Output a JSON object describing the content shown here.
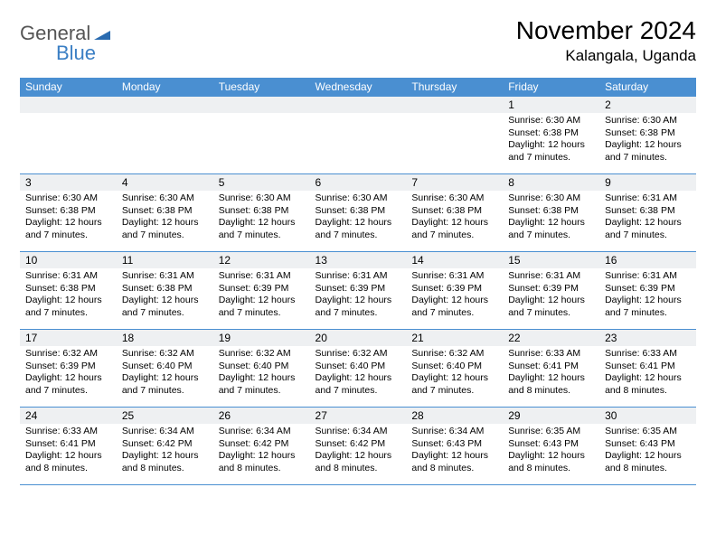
{
  "logo": {
    "word1": "General",
    "word2": "Blue",
    "tri_color": "#2a6bb0"
  },
  "title": "November 2024",
  "location": "Kalangala, Uganda",
  "colors": {
    "header_bg": "#4a8fd1",
    "header_text": "#ffffff",
    "rule": "#4a8fd1",
    "daynum_bg": "#eef0f2",
    "page_bg": "#ffffff",
    "text": "#000000"
  },
  "day_labels": [
    "Sunday",
    "Monday",
    "Tuesday",
    "Wednesday",
    "Thursday",
    "Friday",
    "Saturday"
  ],
  "weeks": [
    [
      {
        "n": "",
        "sr": "",
        "ss": "",
        "dl": ""
      },
      {
        "n": "",
        "sr": "",
        "ss": "",
        "dl": ""
      },
      {
        "n": "",
        "sr": "",
        "ss": "",
        "dl": ""
      },
      {
        "n": "",
        "sr": "",
        "ss": "",
        "dl": ""
      },
      {
        "n": "",
        "sr": "",
        "ss": "",
        "dl": ""
      },
      {
        "n": "1",
        "sr": "Sunrise: 6:30 AM",
        "ss": "Sunset: 6:38 PM",
        "dl": "Daylight: 12 hours and 7 minutes."
      },
      {
        "n": "2",
        "sr": "Sunrise: 6:30 AM",
        "ss": "Sunset: 6:38 PM",
        "dl": "Daylight: 12 hours and 7 minutes."
      }
    ],
    [
      {
        "n": "3",
        "sr": "Sunrise: 6:30 AM",
        "ss": "Sunset: 6:38 PM",
        "dl": "Daylight: 12 hours and 7 minutes."
      },
      {
        "n": "4",
        "sr": "Sunrise: 6:30 AM",
        "ss": "Sunset: 6:38 PM",
        "dl": "Daylight: 12 hours and 7 minutes."
      },
      {
        "n": "5",
        "sr": "Sunrise: 6:30 AM",
        "ss": "Sunset: 6:38 PM",
        "dl": "Daylight: 12 hours and 7 minutes."
      },
      {
        "n": "6",
        "sr": "Sunrise: 6:30 AM",
        "ss": "Sunset: 6:38 PM",
        "dl": "Daylight: 12 hours and 7 minutes."
      },
      {
        "n": "7",
        "sr": "Sunrise: 6:30 AM",
        "ss": "Sunset: 6:38 PM",
        "dl": "Daylight: 12 hours and 7 minutes."
      },
      {
        "n": "8",
        "sr": "Sunrise: 6:30 AM",
        "ss": "Sunset: 6:38 PM",
        "dl": "Daylight: 12 hours and 7 minutes."
      },
      {
        "n": "9",
        "sr": "Sunrise: 6:31 AM",
        "ss": "Sunset: 6:38 PM",
        "dl": "Daylight: 12 hours and 7 minutes."
      }
    ],
    [
      {
        "n": "10",
        "sr": "Sunrise: 6:31 AM",
        "ss": "Sunset: 6:38 PM",
        "dl": "Daylight: 12 hours and 7 minutes."
      },
      {
        "n": "11",
        "sr": "Sunrise: 6:31 AM",
        "ss": "Sunset: 6:38 PM",
        "dl": "Daylight: 12 hours and 7 minutes."
      },
      {
        "n": "12",
        "sr": "Sunrise: 6:31 AM",
        "ss": "Sunset: 6:39 PM",
        "dl": "Daylight: 12 hours and 7 minutes."
      },
      {
        "n": "13",
        "sr": "Sunrise: 6:31 AM",
        "ss": "Sunset: 6:39 PM",
        "dl": "Daylight: 12 hours and 7 minutes."
      },
      {
        "n": "14",
        "sr": "Sunrise: 6:31 AM",
        "ss": "Sunset: 6:39 PM",
        "dl": "Daylight: 12 hours and 7 minutes."
      },
      {
        "n": "15",
        "sr": "Sunrise: 6:31 AM",
        "ss": "Sunset: 6:39 PM",
        "dl": "Daylight: 12 hours and 7 minutes."
      },
      {
        "n": "16",
        "sr": "Sunrise: 6:31 AM",
        "ss": "Sunset: 6:39 PM",
        "dl": "Daylight: 12 hours and 7 minutes."
      }
    ],
    [
      {
        "n": "17",
        "sr": "Sunrise: 6:32 AM",
        "ss": "Sunset: 6:39 PM",
        "dl": "Daylight: 12 hours and 7 minutes."
      },
      {
        "n": "18",
        "sr": "Sunrise: 6:32 AM",
        "ss": "Sunset: 6:40 PM",
        "dl": "Daylight: 12 hours and 7 minutes."
      },
      {
        "n": "19",
        "sr": "Sunrise: 6:32 AM",
        "ss": "Sunset: 6:40 PM",
        "dl": "Daylight: 12 hours and 7 minutes."
      },
      {
        "n": "20",
        "sr": "Sunrise: 6:32 AM",
        "ss": "Sunset: 6:40 PM",
        "dl": "Daylight: 12 hours and 7 minutes."
      },
      {
        "n": "21",
        "sr": "Sunrise: 6:32 AM",
        "ss": "Sunset: 6:40 PM",
        "dl": "Daylight: 12 hours and 7 minutes."
      },
      {
        "n": "22",
        "sr": "Sunrise: 6:33 AM",
        "ss": "Sunset: 6:41 PM",
        "dl": "Daylight: 12 hours and 8 minutes."
      },
      {
        "n": "23",
        "sr": "Sunrise: 6:33 AM",
        "ss": "Sunset: 6:41 PM",
        "dl": "Daylight: 12 hours and 8 minutes."
      }
    ],
    [
      {
        "n": "24",
        "sr": "Sunrise: 6:33 AM",
        "ss": "Sunset: 6:41 PM",
        "dl": "Daylight: 12 hours and 8 minutes."
      },
      {
        "n": "25",
        "sr": "Sunrise: 6:34 AM",
        "ss": "Sunset: 6:42 PM",
        "dl": "Daylight: 12 hours and 8 minutes."
      },
      {
        "n": "26",
        "sr": "Sunrise: 6:34 AM",
        "ss": "Sunset: 6:42 PM",
        "dl": "Daylight: 12 hours and 8 minutes."
      },
      {
        "n": "27",
        "sr": "Sunrise: 6:34 AM",
        "ss": "Sunset: 6:42 PM",
        "dl": "Daylight: 12 hours and 8 minutes."
      },
      {
        "n": "28",
        "sr": "Sunrise: 6:34 AM",
        "ss": "Sunset: 6:43 PM",
        "dl": "Daylight: 12 hours and 8 minutes."
      },
      {
        "n": "29",
        "sr": "Sunrise: 6:35 AM",
        "ss": "Sunset: 6:43 PM",
        "dl": "Daylight: 12 hours and 8 minutes."
      },
      {
        "n": "30",
        "sr": "Sunrise: 6:35 AM",
        "ss": "Sunset: 6:43 PM",
        "dl": "Daylight: 12 hours and 8 minutes."
      }
    ]
  ]
}
